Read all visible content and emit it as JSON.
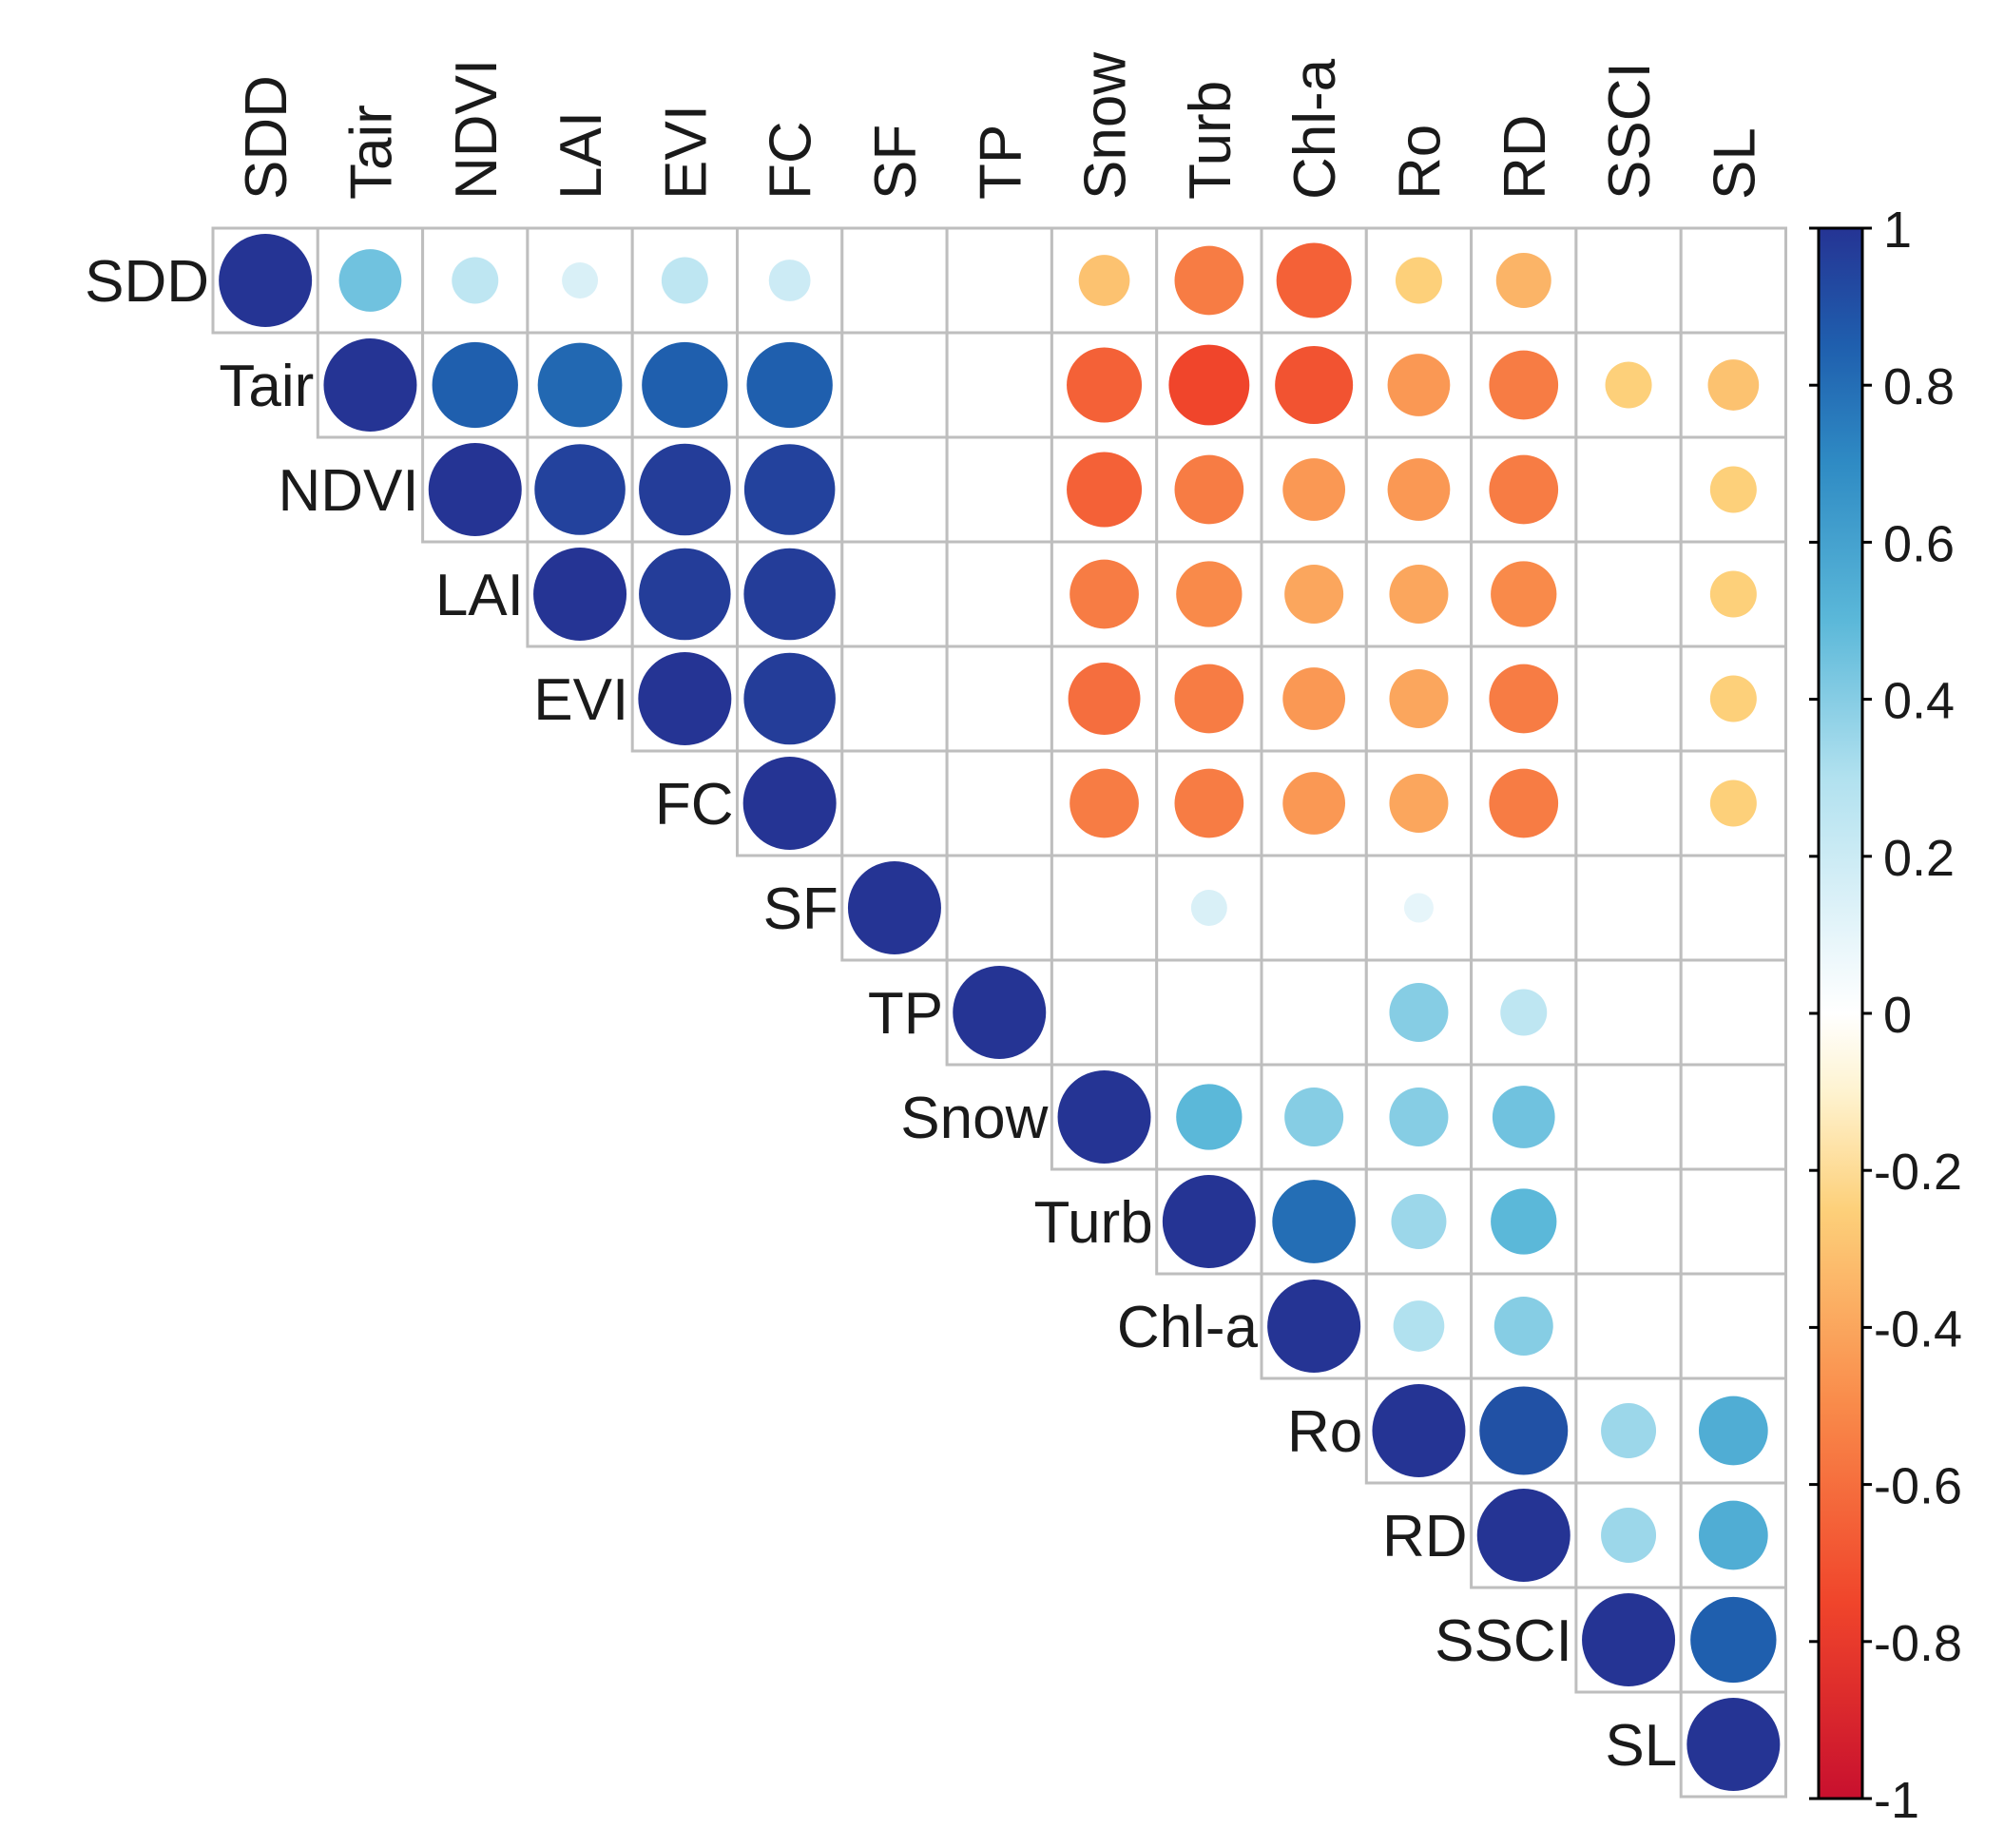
{
  "chart_data": {
    "type": "heatmap",
    "subtype": "correlation-circle-matrix-upper",
    "variables": [
      "SDD",
      "Tair",
      "NDVI",
      "LAI",
      "EVI",
      "FC",
      "SF",
      "TP",
      "Snow",
      "Turb",
      "Chl-a",
      "Ro",
      "RD",
      "SSCI",
      "SL"
    ],
    "matrix": [
      [
        1,
        0.45,
        0.25,
        0.15,
        0.25,
        0.2,
        null,
        null,
        -0.3,
        -0.55,
        -0.65,
        -0.25,
        -0.35,
        null,
        null
      ],
      [
        null,
        1,
        0.85,
        0.82,
        0.85,
        0.85,
        null,
        null,
        -0.65,
        -0.75,
        -0.7,
        -0.45,
        -0.55,
        -0.25,
        -0.3
      ],
      [
        null,
        null,
        1,
        0.95,
        0.97,
        0.95,
        null,
        null,
        -0.65,
        -0.55,
        -0.45,
        -0.45,
        -0.55,
        null,
        -0.25
      ],
      [
        null,
        null,
        null,
        1,
        0.97,
        0.97,
        null,
        null,
        -0.55,
        -0.5,
        -0.4,
        -0.4,
        -0.5,
        null,
        -0.25
      ],
      [
        null,
        null,
        null,
        null,
        1,
        0.97,
        null,
        null,
        -0.6,
        -0.55,
        -0.45,
        -0.4,
        -0.55,
        null,
        -0.25
      ],
      [
        null,
        null,
        null,
        null,
        null,
        1,
        null,
        null,
        -0.55,
        -0.55,
        -0.45,
        -0.4,
        -0.55,
        null,
        -0.25
      ],
      [
        null,
        null,
        null,
        null,
        null,
        null,
        1,
        null,
        null,
        0.15,
        null,
        0.1,
        null,
        null,
        null
      ],
      [
        null,
        null,
        null,
        null,
        null,
        null,
        null,
        1,
        null,
        null,
        null,
        0.4,
        0.25,
        null,
        null
      ],
      [
        null,
        null,
        null,
        null,
        null,
        null,
        null,
        null,
        1,
        0.5,
        0.4,
        0.4,
        0.45,
        null,
        null
      ],
      [
        null,
        null,
        null,
        null,
        null,
        null,
        null,
        null,
        null,
        1,
        0.8,
        0.35,
        0.5,
        null,
        null
      ],
      [
        null,
        null,
        null,
        null,
        null,
        null,
        null,
        null,
        null,
        null,
        1,
        0.3,
        0.4,
        null,
        null
      ],
      [
        null,
        null,
        null,
        null,
        null,
        null,
        null,
        null,
        null,
        null,
        null,
        1,
        0.9,
        0.35,
        0.55
      ],
      [
        null,
        null,
        null,
        null,
        null,
        null,
        null,
        null,
        null,
        null,
        null,
        null,
        1,
        0.35,
        0.55
      ],
      [
        null,
        null,
        null,
        null,
        null,
        null,
        null,
        null,
        null,
        null,
        null,
        null,
        null,
        1,
        0.85
      ],
      [
        null,
        null,
        null,
        null,
        null,
        null,
        null,
        null,
        null,
        null,
        null,
        null,
        null,
        null,
        1
      ]
    ],
    "colorbar": {
      "range": [
        -1,
        1
      ],
      "tick_values": [
        1,
        0.8,
        0.6,
        0.4,
        0.2,
        0,
        -0.2,
        -0.4,
        -0.6,
        -0.8,
        -1
      ],
      "tick_labels": [
        "1",
        "0.8",
        "0.6",
        "0.4",
        "0.2",
        "0",
        "-0.2",
        "-0.4",
        "-0.6",
        "-0.8",
        "-1"
      ]
    },
    "colors": {
      "scale": [
        "#67001f",
        "#b2182b",
        "#d6604d",
        "#f4a582",
        "#fddbc7",
        "#ffffff",
        "#d1e5f0",
        "#92c5de",
        "#4393c3",
        "#2166ac",
        "#053061"
      ],
      "palette_anchors": [
        {
          "v": -1.0,
          "c": "#c8102e"
        },
        {
          "v": -0.75,
          "c": "#f0452b"
        },
        {
          "v": -0.5,
          "c": "#f98a4a"
        },
        {
          "v": -0.25,
          "c": "#fdd07a"
        },
        {
          "v": -0.1,
          "c": "#fef3d0"
        },
        {
          "v": 0.0,
          "c": "#ffffff"
        },
        {
          "v": 0.1,
          "c": "#e6f5fa"
        },
        {
          "v": 0.3,
          "c": "#b1e1ef"
        },
        {
          "v": 0.5,
          "c": "#5bb8d9"
        },
        {
          "v": 0.7,
          "c": "#2f8bc4"
        },
        {
          "v": 0.85,
          "c": "#1f5fae"
        },
        {
          "v": 1.0,
          "c": "#253494"
        }
      ],
      "grid": "#bebebe",
      "text": "#1a1a1a"
    }
  }
}
